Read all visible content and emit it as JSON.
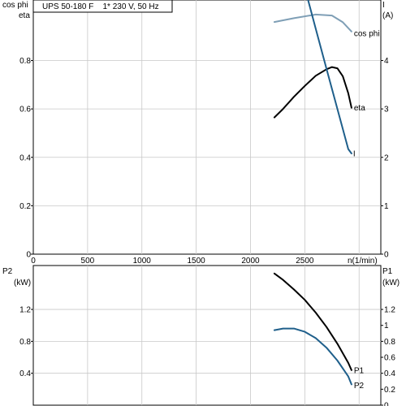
{
  "colors": {
    "frame": "#000000",
    "grid": "#c8c8c8",
    "cos_phi": "#7f9fb6",
    "eta": "#000000",
    "I": "#1f5f8b",
    "P1": "#000000",
    "P2": "#1f5f8b"
  },
  "chart_data": [
    {
      "type": "line",
      "title": "UPS 50-180 F    1* 230 V, 50 Hz",
      "xlabel": "n(1/min)",
      "xlim": [
        0,
        3200
      ],
      "xticks": [
        0,
        500,
        1000,
        1500,
        2000,
        2500
      ],
      "grid": true,
      "y_left": {
        "label_line1": "cos phi",
        "label_line2": "eta",
        "lim": [
          0,
          1.05
        ],
        "ticks": [
          0,
          0.2,
          0.4,
          0.6,
          0.8
        ],
        "tick_labels": [
          "0",
          "0.2",
          "0.4",
          "0.6",
          "0.8"
        ]
      },
      "y_right": {
        "label_line1": "I",
        "label_line2": "(A)",
        "lim": [
          0,
          5.25
        ],
        "ticks": [
          0,
          1,
          2,
          3,
          4
        ],
        "tick_labels": [
          "0",
          "1",
          "2",
          "3",
          "4"
        ]
      },
      "series": [
        {
          "name": "cos phi",
          "axis": "left",
          "color": "cos_phi",
          "x": [
            2220,
            2400,
            2600,
            2750,
            2850,
            2930
          ],
          "y": [
            0.959,
            0.975,
            0.99,
            0.986,
            0.958,
            0.92
          ]
        },
        {
          "name": "eta",
          "axis": "left",
          "color": "eta",
          "x": [
            2220,
            2300,
            2400,
            2500,
            2600,
            2700,
            2750,
            2800,
            2850,
            2900,
            2930
          ],
          "y": [
            0.565,
            0.6,
            0.65,
            0.695,
            0.737,
            0.764,
            0.773,
            0.768,
            0.735,
            0.665,
            0.605
          ]
        },
        {
          "name": "I",
          "axis": "right",
          "color": "I",
          "x": [
            2530,
            2600,
            2700,
            2800,
            2900,
            2930
          ],
          "y": [
            5.25,
            4.66,
            3.83,
            3.0,
            2.17,
            2.08
          ]
        }
      ]
    },
    {
      "type": "line",
      "xlim": [
        0,
        3200
      ],
      "xticks": [
        0,
        500,
        1000,
        1500,
        2000,
        2500
      ],
      "grid": true,
      "y_left": {
        "label_line1": "P2",
        "label_line2": "(kW)",
        "lim": [
          0,
          1.75
        ],
        "ticks": [
          0.4,
          0.8,
          1.2
        ],
        "tick_labels": [
          "0.4",
          "0.8",
          "1.2"
        ]
      },
      "y_right": {
        "label_line1": "P1",
        "label_line2": "(kW)",
        "lim": [
          0,
          1.75
        ],
        "ticks": [
          0,
          0.2,
          0.4,
          0.6,
          0.8,
          1.0,
          1.2
        ],
        "tick_labels": [
          "0",
          "0.2",
          "0.4",
          "0.6",
          "0.8",
          "1",
          "1.2"
        ]
      },
      "series": [
        {
          "name": "P1",
          "axis": "right",
          "color": "P1",
          "x": [
            2220,
            2300,
            2400,
            2500,
            2600,
            2700,
            2800,
            2900,
            2930
          ],
          "y": [
            1.65,
            1.57,
            1.45,
            1.32,
            1.16,
            0.98,
            0.77,
            0.53,
            0.44
          ]
        },
        {
          "name": "P2",
          "axis": "left",
          "color": "P2",
          "x": [
            2220,
            2300,
            2400,
            2500,
            2600,
            2700,
            2800,
            2900,
            2930
          ],
          "y": [
            0.94,
            0.96,
            0.96,
            0.92,
            0.84,
            0.72,
            0.56,
            0.36,
            0.26
          ]
        }
      ]
    }
  ]
}
